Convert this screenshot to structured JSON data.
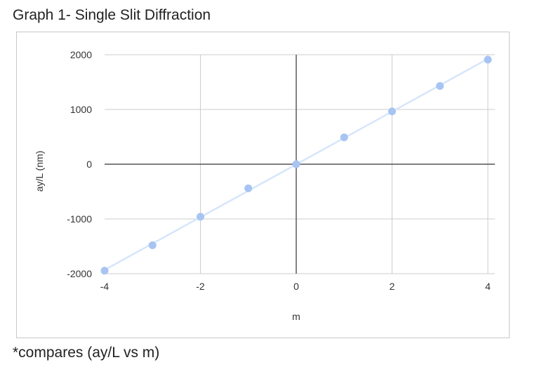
{
  "page": {
    "title": "Graph 1- Single Slit Diffraction",
    "caption": "*compares (ay/L vs m)"
  },
  "colors": {
    "series": "#a7c4f2",
    "line": "#d6e6fb",
    "axis": "#333333",
    "grid": "#cccccc"
  },
  "chart_data": {
    "type": "scatter",
    "title": "",
    "xlabel": "m",
    "ylabel": "ay/L (nm)",
    "xlim": [
      -4,
      4
    ],
    "ylim": [
      -2000,
      2000
    ],
    "xticks": [
      -4,
      -2,
      0,
      2,
      4
    ],
    "yticks": [
      -2000,
      -1000,
      0,
      1000,
      2000
    ],
    "grid": true,
    "trendline": true,
    "x": [
      -4,
      -3,
      -2,
      -1,
      0,
      1,
      2,
      3,
      4
    ],
    "y": [
      -1945,
      -1480,
      -960,
      -440,
      0,
      490,
      965,
      1430,
      1910
    ]
  }
}
